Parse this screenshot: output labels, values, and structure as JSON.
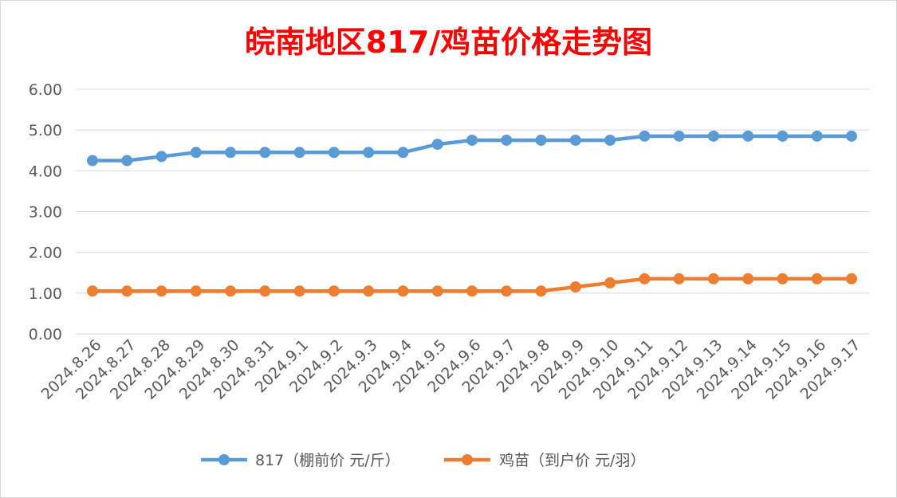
{
  "chart_data": {
    "type": "line",
    "title": "皖南地区817/鸡苗价格走势图",
    "categories": [
      "2024.8.26",
      "2024.8.27",
      "2024.8.28",
      "2024.8.29",
      "2024.8.30",
      "2024.8.31",
      "2024.9.1",
      "2024.9.2",
      "2024.9.3",
      "2024.9.4",
      "2024.9.5",
      "2024.9.6",
      "2024.9.7",
      "2024.9.8",
      "2024.9.9",
      "2024.9.10",
      "2024.9.11",
      "2024.9.12",
      "2024.9.13",
      "2024.9.14",
      "2024.9.15",
      "2024.9.16",
      "2024.9.17"
    ],
    "series": [
      {
        "name": "817（棚前价 元/斤）",
        "color": "#5b9bd5",
        "values": [
          4.25,
          4.25,
          4.35,
          4.45,
          4.45,
          4.45,
          4.45,
          4.45,
          4.45,
          4.45,
          4.65,
          4.75,
          4.75,
          4.75,
          4.75,
          4.75,
          4.85,
          4.85,
          4.85,
          4.85,
          4.85,
          4.85,
          4.85
        ]
      },
      {
        "name": "鸡苗（到户价 元/羽）",
        "color": "#ed7d31",
        "values": [
          1.05,
          1.05,
          1.05,
          1.05,
          1.05,
          1.05,
          1.05,
          1.05,
          1.05,
          1.05,
          1.05,
          1.05,
          1.05,
          1.05,
          1.15,
          1.25,
          1.35,
          1.35,
          1.35,
          1.35,
          1.35,
          1.35,
          1.35
        ]
      }
    ],
    "yticks": [
      "0.00",
      "1.00",
      "2.00",
      "3.00",
      "4.00",
      "5.00",
      "6.00"
    ],
    "ylim": [
      0,
      6
    ],
    "grid": true,
    "legend_position": "bottom"
  }
}
